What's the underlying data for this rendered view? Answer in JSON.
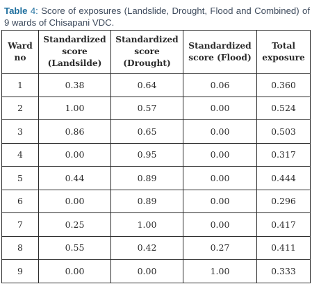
{
  "caption": {
    "label": "Table",
    "number": "4:",
    "text": "Score of exposures (Landslide, Drought, Flood and Combined) of 9 wards of Chisapani VDC."
  },
  "table": {
    "headers": [
      [
        "Ward",
        "no"
      ],
      [
        "Standardized",
        "score",
        "(Landsilde)"
      ],
      [
        "Standardized",
        "score",
        "(Drought)"
      ],
      [
        "Standardized",
        "score (Flood)"
      ],
      [
        "Total",
        "exposure"
      ]
    ],
    "rows": [
      [
        "1",
        "0.38",
        "0.64",
        "0.06",
        "0.360"
      ],
      [
        "2",
        "1.00",
        "0.57",
        "0.00",
        "0.524"
      ],
      [
        "3",
        "0.86",
        "0.65",
        "0.00",
        "0.503"
      ],
      [
        "4",
        "0.00",
        "0.95",
        "0.00",
        "0.317"
      ],
      [
        "5",
        "0.44",
        "0.89",
        "0.00",
        "0.444"
      ],
      [
        "6",
        "0.00",
        "0.89",
        "0.00",
        "0.296"
      ],
      [
        "7",
        "0.25",
        "1.00",
        "0.00",
        "0.417"
      ],
      [
        "8",
        "0.55",
        "0.42",
        "0.27",
        "0.411"
      ],
      [
        "9",
        "0.00",
        "0.00",
        "1.00",
        "0.333"
      ]
    ]
  },
  "colors": {
    "caption_label": "#1f6f9e",
    "caption_text": "#3d4a5c",
    "border": "#2b2b2b"
  }
}
